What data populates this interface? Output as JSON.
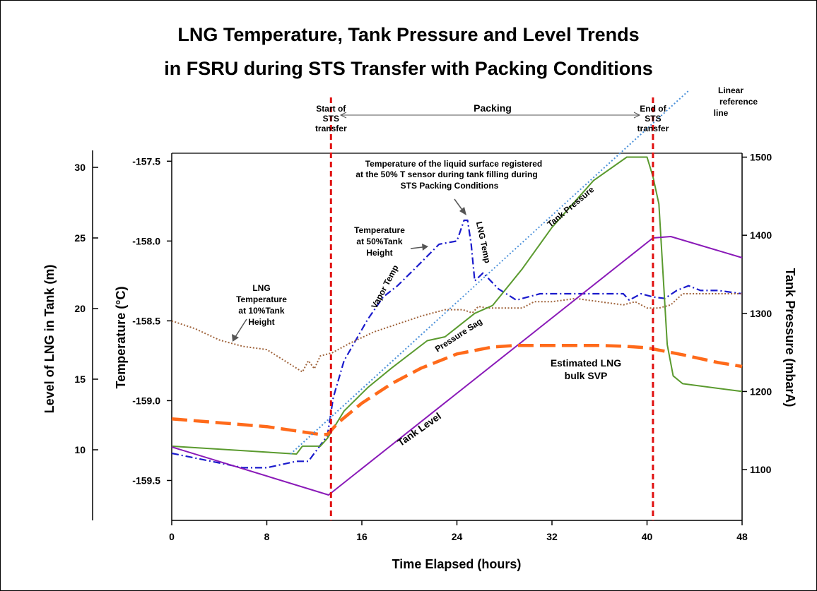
{
  "chart_data": {
    "type": "line",
    "title_line1": "LNG Temperature, Tank Pressure and Level Trends",
    "title_line2": "in FSRU during STS Transfer with Packing Conditions",
    "xlabel": "Time Elapsed (hours)",
    "ylabel_left_outer": "Level of LNG in Tank (m)",
    "ylabel_left_inner": "Temperature (°C)",
    "ylabel_right": "Tank Pressure (mbarA)",
    "x_ticks": [
      "0",
      "8",
      "16",
      "24",
      "32",
      "40",
      "48"
    ],
    "temp_ticks": [
      "-157.5",
      "-158.0",
      "-158.5",
      "-159.0",
      "-159.5"
    ],
    "level_ticks": [
      "30",
      "25",
      "20",
      "15",
      "10"
    ],
    "pressure_ticks": [
      "1500",
      "1400",
      "1300",
      "1200",
      "1100"
    ],
    "xlim": [
      0,
      48
    ],
    "temp_lim": [
      -159.75,
      -157.45
    ],
    "level_lim": [
      5,
      31
    ],
    "pressure_lim": [
      1035,
      1505
    ],
    "colors": {
      "vapor_temp": "#1a1acc",
      "temp_10pct": "#a0643c",
      "tank_pressure": "#5a9a2e",
      "tank_level": "#8a1ab8",
      "svp": "#ff6a1a",
      "reference": "#4a90d9",
      "markers": "#e01010"
    },
    "series": [
      {
        "key": "vapor_temp",
        "axis": "temp",
        "x": [
          0,
          2,
          6,
          8,
          10.5,
          11,
          11.5,
          12.5,
          13.1,
          13.6,
          14.5,
          15.5,
          16.5,
          17.8,
          19,
          20.5,
          22.5,
          24,
          24.6,
          24.9,
          25.2,
          25.5,
          26.2,
          27.5,
          29,
          31,
          33,
          36.5,
          38,
          38.5,
          39.5,
          40.5,
          41.5,
          42.5,
          43.5,
          44.5,
          46,
          48
        ],
        "y": [
          -159.33,
          -159.36,
          -159.42,
          -159.42,
          -159.38,
          -159.38,
          -159.38,
          -159.28,
          -159.22,
          -158.98,
          -158.75,
          -158.62,
          -158.49,
          -158.35,
          -158.28,
          -158.17,
          -158.02,
          -158.0,
          -157.87,
          -157.87,
          -158.02,
          -158.25,
          -158.2,
          -158.3,
          -158.37,
          -158.33,
          -158.33,
          -158.33,
          -158.33,
          -158.37,
          -158.33,
          -158.35,
          -158.36,
          -158.31,
          -158.28,
          -158.31,
          -158.31,
          -158.33
        ]
      },
      {
        "key": "temp_10pct",
        "axis": "temp",
        "x": [
          0,
          2,
          4,
          6,
          8,
          9.5,
          11,
          11.5,
          12,
          12.5,
          13.5,
          15,
          17,
          19,
          21,
          23,
          24.5,
          25.3,
          25.8,
          26.6,
          28,
          29.5,
          30.5,
          32,
          34,
          36,
          38,
          39,
          40,
          41,
          42,
          43,
          45,
          48
        ],
        "y": [
          -158.5,
          -158.55,
          -158.62,
          -158.66,
          -158.68,
          -158.75,
          -158.82,
          -158.75,
          -158.8,
          -158.72,
          -158.7,
          -158.64,
          -158.57,
          -158.52,
          -158.47,
          -158.43,
          -158.43,
          -158.45,
          -158.41,
          -158.42,
          -158.42,
          -158.42,
          -158.38,
          -158.38,
          -158.36,
          -158.38,
          -158.4,
          -158.38,
          -158.42,
          -158.42,
          -158.4,
          -158.33,
          -158.33,
          -158.33
        ]
      },
      {
        "key": "tank_pressure",
        "axis": "pressure",
        "x": [
          0,
          10.5,
          11,
          12.5,
          13.1,
          14.5,
          16.5,
          18.5,
          21.5,
          23,
          25.5,
          27,
          29.5,
          32,
          35.5,
          38.3,
          40,
          40.5,
          41,
          41.7,
          42.2,
          43,
          48
        ],
        "y": [
          1130,
          1120,
          1130,
          1130,
          1140,
          1175,
          1205,
          1230,
          1265,
          1270,
          1300,
          1310,
          1357,
          1410,
          1470,
          1500,
          1500,
          1475,
          1440,
          1260,
          1220,
          1210,
          1200
        ]
      },
      {
        "key": "tank_level",
        "axis": "level",
        "x": [
          0,
          13.2,
          40.5,
          42,
          48
        ],
        "y": [
          10.2,
          6.8,
          25,
          25.1,
          23.6
        ]
      },
      {
        "key": "svp",
        "axis": "pressure",
        "x": [
          0,
          4,
          8,
          12.5,
          13.1,
          14,
          16,
          18.5,
          21,
          24,
          27,
          29,
          32,
          34,
          36,
          38,
          40,
          41,
          43,
          46,
          48
        ],
        "y": [
          1165,
          1160,
          1155,
          1145,
          1145,
          1160,
          1185,
          1210,
          1230,
          1248,
          1257,
          1259,
          1259,
          1259,
          1259,
          1258,
          1256,
          1253,
          1247,
          1237,
          1232
        ]
      },
      {
        "key": "reference",
        "axis": "pressure",
        "x": [
          10,
          43.5
        ],
        "y": [
          1120,
          1585
        ]
      }
    ],
    "events": [
      {
        "x": 13.4,
        "label_lines": [
          "Start of",
          "STS",
          "transfer"
        ]
      },
      {
        "x": 40.5,
        "label_lines": [
          "End of",
          "STS",
          "transfer"
        ]
      }
    ],
    "annotations": {
      "packing": "Packing",
      "linear_ref": [
        "Linear",
        "reference",
        "line"
      ],
      "temp_surface": [
        "Temperature of the liquid surface registered",
        "at the 50% T sensor during tank filling during",
        "STS Packing Conditions"
      ],
      "temp_50": [
        "Temperature",
        "at 50%Tank",
        "Height"
      ],
      "temp_10": [
        "LNG",
        "Temperature",
        "at 10%Tank",
        "Height"
      ],
      "vapor_temp": "Vapor Temp",
      "lng_temp": "LNG Temp",
      "tank_pressure": "Tank Pressure",
      "pressure_sag": "Pressure Sag",
      "tank_level": "Tank Level",
      "svp": [
        "Estimated LNG",
        "bulk SVP"
      ]
    }
  }
}
